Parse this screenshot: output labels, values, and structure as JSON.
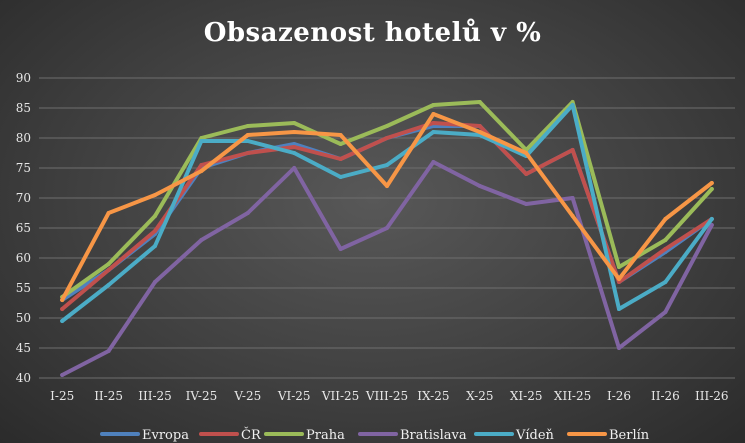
{
  "chart_data": {
    "type": "line",
    "title": "Obsazenost hotelů v %",
    "xlabel": "",
    "ylabel": "",
    "categories": [
      "I-25",
      "II-25",
      "III-25",
      "IV-25",
      "V-25",
      "VI-25",
      "VII-25",
      "VIII-25",
      "IX-25",
      "X-25",
      "XI-25",
      "XII-25",
      "I-26",
      "II-26",
      "III-26"
    ],
    "ylim": [
      40,
      90
    ],
    "yticks": [
      40,
      45,
      50,
      55,
      60,
      65,
      70,
      75,
      80,
      85,
      90
    ],
    "grid": true,
    "legend_position": "bottom",
    "series": [
      {
        "name": "Evropa",
        "color": "#4f81bd",
        "values": [
          53,
          58,
          64,
          75,
          77.5,
          79,
          76.5,
          80,
          82,
          82,
          74,
          78,
          56,
          61,
          66.5
        ]
      },
      {
        "name": "ČR",
        "color": "#c0504d",
        "values": [
          51.5,
          58,
          64.5,
          75.5,
          77.5,
          78.5,
          76.5,
          80,
          82.5,
          82,
          74,
          78,
          56,
          61.5,
          66.5
        ]
      },
      {
        "name": "Praha",
        "color": "#9bbb59",
        "values": [
          53.5,
          59,
          67,
          80,
          82,
          82.5,
          79,
          82,
          85.5,
          86,
          78,
          86,
          58.5,
          63,
          71.5
        ]
      },
      {
        "name": "Bratislava",
        "color": "#8064a2",
        "values": [
          40.5,
          44.5,
          56,
          63,
          67.5,
          75,
          61.5,
          65,
          76,
          72,
          69,
          70,
          45,
          51,
          65.5
        ]
      },
      {
        "name": "Vídeň",
        "color": "#4bacc6",
        "values": [
          49.5,
          55.5,
          62,
          79.5,
          79.5,
          77.5,
          73.5,
          75.5,
          81,
          80.5,
          77,
          85.5,
          51.5,
          56,
          66.5
        ]
      },
      {
        "name": "Berlín",
        "color": "#f79646",
        "values": [
          53,
          67.5,
          70.5,
          74.5,
          80.5,
          81,
          80.5,
          72,
          84,
          81,
          77.5,
          67,
          56.5,
          66.5,
          72.5
        ]
      }
    ]
  }
}
